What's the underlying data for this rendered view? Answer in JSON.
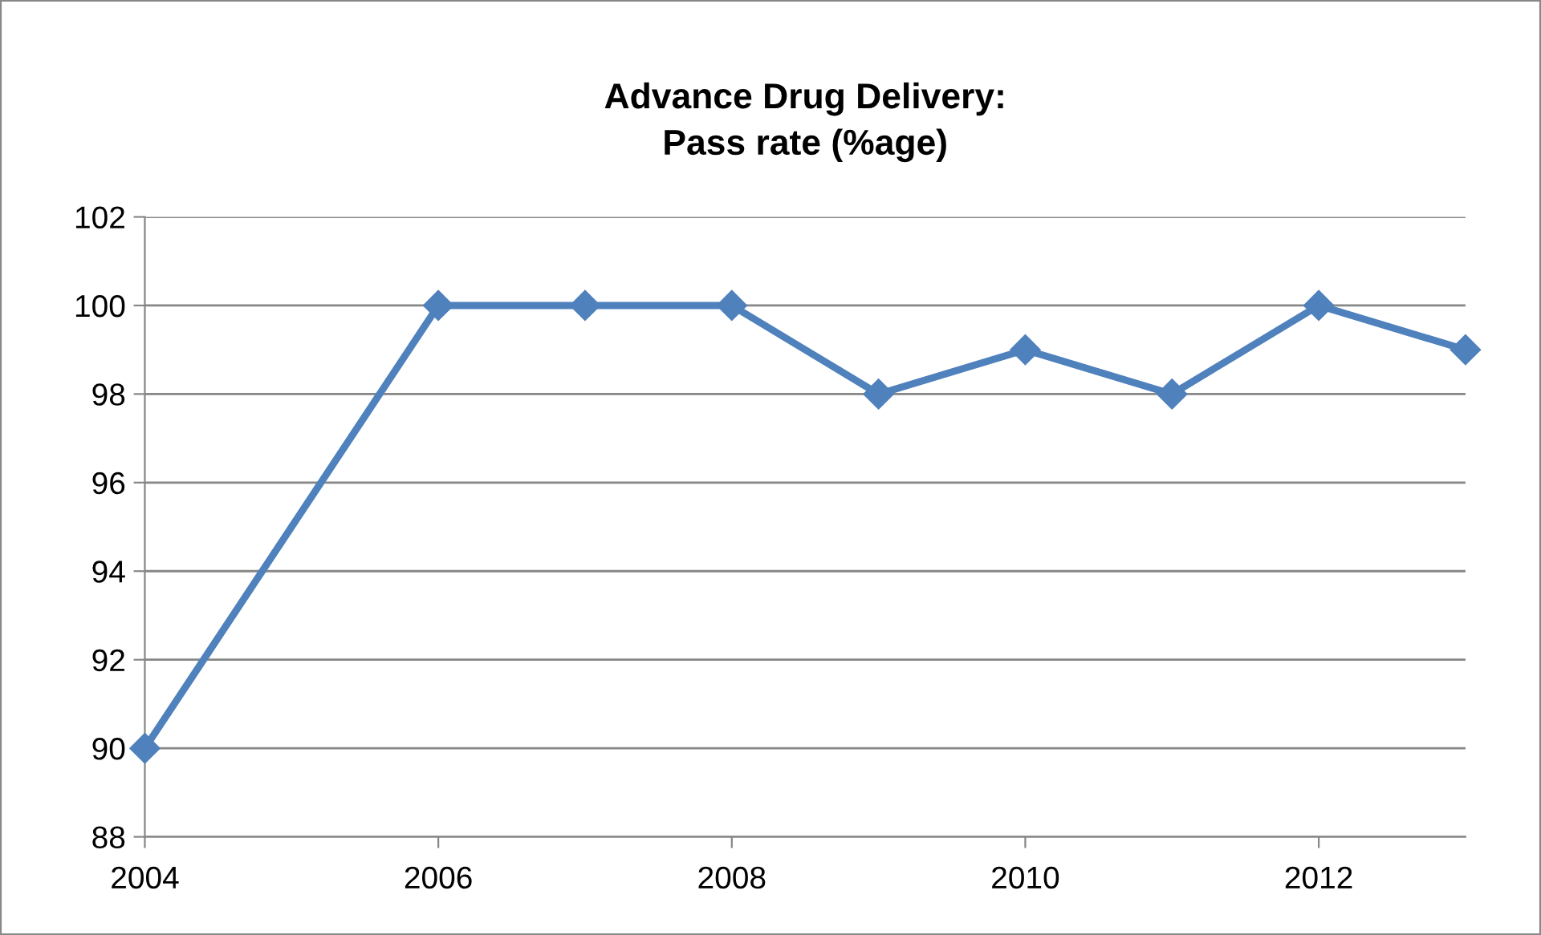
{
  "chart_data": {
    "type": "line",
    "title": "Advance Drug Delivery:\nPass rate (%age)",
    "x": [
      2004,
      2006,
      2007,
      2008,
      2009,
      2010,
      2011,
      2012,
      2013
    ],
    "series": [
      {
        "color": "#4f81bd",
        "values": [
          90,
          100,
          100,
          100,
          98,
          99,
          98,
          100,
          99
        ]
      }
    ],
    "xlim": [
      2004,
      2013
    ],
    "xticks": [
      2004,
      2006,
      2008,
      2010,
      2012
    ],
    "ylim": [
      88,
      102
    ],
    "yticks": [
      88,
      90,
      92,
      94,
      96,
      98,
      100,
      102
    ],
    "grid": "y",
    "marker": "diamond",
    "line_style": "solid"
  }
}
